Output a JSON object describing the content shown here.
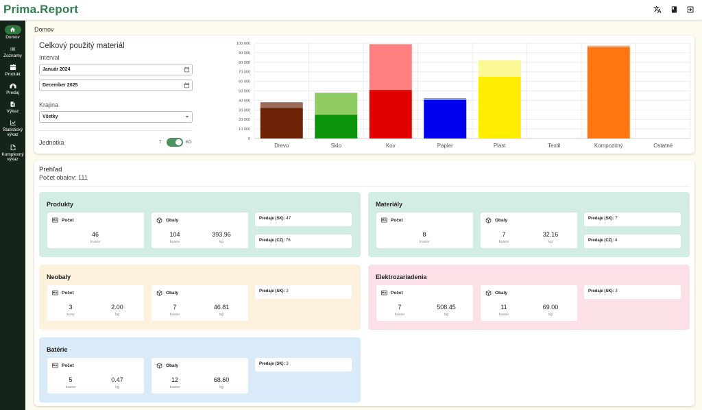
{
  "app": {
    "title": "Prima.Report"
  },
  "breadcrumb": "Domov",
  "sidebar": {
    "items": [
      {
        "label": "Domov",
        "icon": "home-icon"
      },
      {
        "label": "Zoznamy",
        "icon": "list-icon"
      },
      {
        "label": "Produkt",
        "icon": "product-icon"
      },
      {
        "label": "Predaj",
        "icon": "sale-icon"
      },
      {
        "label": "Výkaz",
        "icon": "report-icon"
      },
      {
        "label": "Štatistický výkaz",
        "icon": "chart-line-icon"
      },
      {
        "label": "Komplexný výkaz",
        "icon": "export-icon"
      }
    ]
  },
  "material_card": {
    "title": "Celkový použitý materiál",
    "interval_label": "Interval",
    "date_from": "Január 2024",
    "date_to": "December 2025",
    "country_label": "Krajina",
    "country_value": "Všetky",
    "unit_label": "Jednotka",
    "unit_left": "T",
    "unit_right": "KG"
  },
  "chart_data": {
    "type": "bar",
    "stacked": true,
    "categories": [
      "Drevo",
      "Sklo",
      "Kov",
      "Papier",
      "Plast",
      "Textil",
      "Kompozitný",
      "Ostatné"
    ],
    "ylim": [
      0,
      100000
    ],
    "yticks": [
      "0",
      "10 000",
      "20 000",
      "30 000",
      "40 000",
      "50 000",
      "60 000",
      "70 000",
      "80 000",
      "90 000",
      "100 000"
    ],
    "bars": [
      {
        "bottom": 32000,
        "top": 6000,
        "bottom_color": "#6e2205",
        "top_color": "#9c6b58"
      },
      {
        "bottom": 25000,
        "top": 23000,
        "bottom_color": "#0c930c",
        "top_color": "#8fcb63"
      },
      {
        "bottom": 51000,
        "top": 48000,
        "bottom_color": "#e00000",
        "top_color": "#ff8080"
      },
      {
        "bottom": 40500,
        "top": 2000,
        "bottom_color": "#0000ee",
        "top_color": "#7aa0e8"
      },
      {
        "bottom": 65000,
        "top": 17000,
        "bottom_color": "#ffee00",
        "top_color": "#fbf995"
      },
      {
        "bottom": 0,
        "top": 0,
        "bottom_color": "#888888",
        "top_color": "#cccccc"
      },
      {
        "bottom": 96000,
        "top": 1500,
        "bottom_color": "#ff7612",
        "top_color": "#f0b890"
      },
      {
        "bottom": 0,
        "top": 0,
        "bottom_color": "#888888",
        "top_color": "#cccccc"
      }
    ]
  },
  "overview": {
    "title": "Prehľad",
    "subtitle": "Počet obalov: 111",
    "count_label": "Počet",
    "packs_label": "Obaly",
    "sections": {
      "produkty": {
        "title": "Produkty",
        "color": "#d3ece4",
        "count": "46",
        "count_unit": "kusov",
        "packs": "104",
        "packs_unit": "kusov",
        "packs_kg": "393.96",
        "kg": "kg",
        "sale1_label": "Predaje (SK):",
        "sale1_value": "47",
        "sale2_label": "Predaje (CZ):",
        "sale2_value": "76"
      },
      "materialy": {
        "title": "Materiály",
        "color": "#d3ece4",
        "count": "8",
        "count_unit": "kusov",
        "packs": "7",
        "packs_unit": "kusov",
        "packs_kg": "32.16",
        "kg": "kg",
        "sale1_label": "Predaje (SK):",
        "sale1_value": "7",
        "sale2_label": "Predaje (CZ):",
        "sale2_value": "4"
      },
      "neobaly": {
        "title": "Neobaly",
        "color": "#fdf0dc",
        "count": "3",
        "count_unit": "kusy",
        "count_kg": "2.00",
        "kg": "kg",
        "packs": "7",
        "packs_unit": "kusov",
        "packs_kg": "46.81",
        "sale1_label": "Predaje (SK):",
        "sale1_value": "2"
      },
      "elektro": {
        "title": "Elektrozariadenia",
        "color": "#fbe1e6",
        "count": "7",
        "count_unit": "kusov",
        "count_kg": "508.45",
        "kg": "kg",
        "packs": "11",
        "packs_unit": "kusov",
        "packs_kg": "69.00",
        "sale1_label": "Predaje (SK):",
        "sale1_value": "3"
      },
      "baterie": {
        "title": "Batérie",
        "color": "#d9eaf8",
        "count": "5",
        "count_unit": "kusov",
        "count_kg": "0.47",
        "kg": "kg",
        "packs": "12",
        "packs_unit": "kusov",
        "packs_kg": "68.60",
        "sale1_label": "Predaje (SK):",
        "sale1_value": "3"
      }
    }
  }
}
